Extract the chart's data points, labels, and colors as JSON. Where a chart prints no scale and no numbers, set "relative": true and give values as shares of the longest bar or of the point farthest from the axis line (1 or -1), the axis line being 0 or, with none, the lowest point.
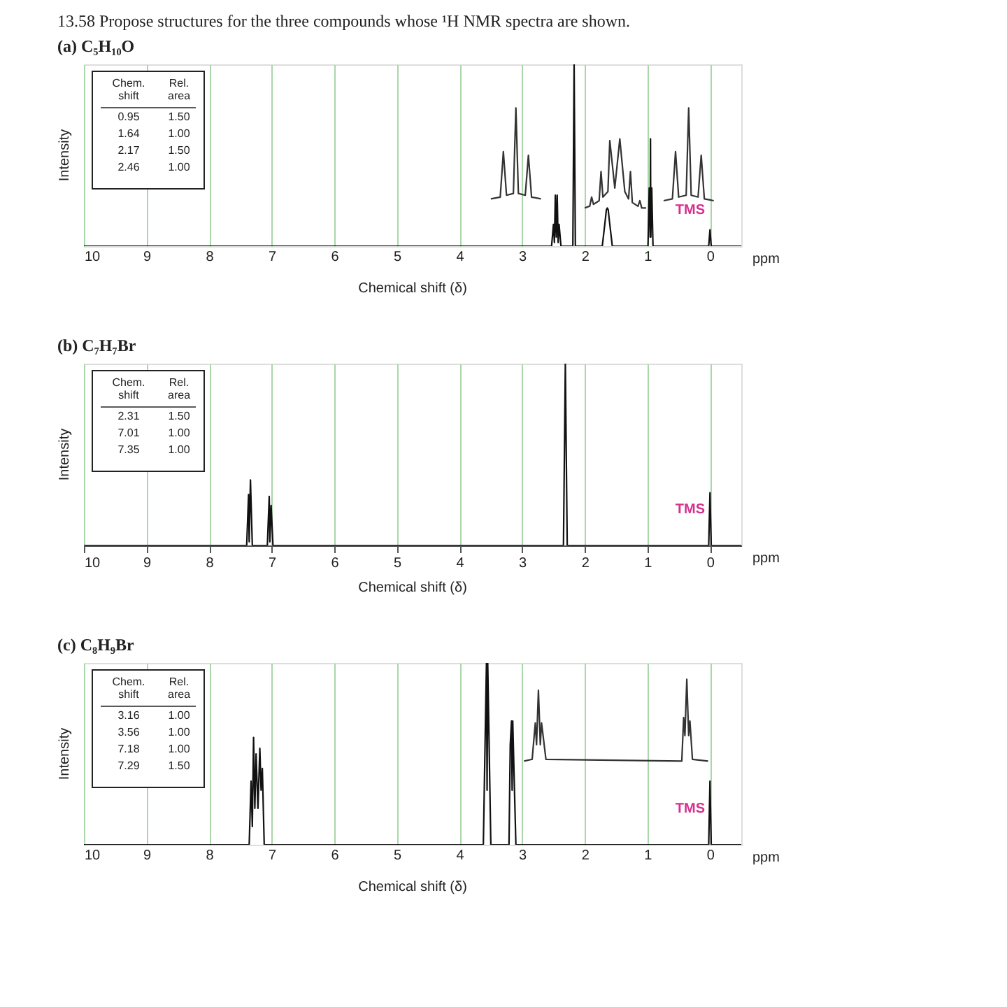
{
  "chart_data": [
    {
      "type": "line",
      "title": "13.58 Propose structures for the three compounds whose ¹H NMR spectra are shown.",
      "subtitle": "(a) C₅H₁₀O",
      "xlabel": "Chemical shift (δ)",
      "ylabel": "Intensity",
      "relative": true,
      "grid": "x",
      "xlim": [
        10,
        -0.5
      ],
      "xticks": [
        10,
        9,
        8,
        7,
        6,
        5,
        4,
        3,
        2,
        1,
        0
      ],
      "annotations": [
        "ppm",
        "TMS",
        "Chem. shift",
        "Rel. area",
        "0.95",
        "1.50",
        "1.64",
        "1.00",
        "2.17",
        "1.50",
        "2.46",
        "1.00"
      ],
      "series": [
        {
          "color": "#111111",
          "x": [
            10,
            2.53,
            2.5,
            2.485,
            2.47,
            2.455,
            2.44,
            2.425,
            2.41,
            2.38,
            2.19,
            2.17,
            2.15,
            1.72,
            1.7,
            1.67,
            1.655,
            1.64,
            1.625,
            1.61,
            1.58,
            1.56,
            0.99,
            0.97,
            0.955,
            0.95,
            0.945,
            0.93,
            0.91,
            0.02,
            0,
            -0.02,
            -0.5
          ],
          "values": [
            0,
            0,
            0.12,
            0.02,
            0.28,
            0.05,
            0.28,
            0.02,
            0.12,
            0,
            0,
            1.0,
            0,
            0,
            0.06,
            0.15,
            0.2,
            0.21,
            0.2,
            0.15,
            0.06,
            0,
            0,
            0.32,
            0.05,
            0.59,
            0.05,
            0.32,
            0,
            0,
            0.09,
            0,
            0
          ]
        },
        {
          "color": "#333333",
          "x": [
            3.5,
            3.35,
            3.3,
            3.25,
            3.14,
            3.1,
            3.06,
            2.95,
            2.9,
            2.85,
            2.7
          ],
          "values": [
            0.26,
            0.27,
            0.52,
            0.28,
            0.29,
            0.76,
            0.29,
            0.28,
            0.5,
            0.27,
            0.26
          ]
        },
        {
          "color": "#333333",
          "x": [
            2.0,
            1.92,
            1.89,
            1.86,
            1.77,
            1.74,
            1.71,
            1.63,
            1.6,
            1.52,
            1.44,
            1.36,
            1.3,
            1.27,
            1.24,
            1.15,
            1.12,
            1.09,
            1.02
          ],
          "values": [
            0.21,
            0.22,
            0.27,
            0.23,
            0.25,
            0.41,
            0.27,
            0.3,
            0.58,
            0.32,
            0.59,
            0.3,
            0.26,
            0.41,
            0.24,
            0.22,
            0.25,
            0.21,
            0.21
          ]
        },
        {
          "color": "#333333",
          "x": [
            0.74,
            0.6,
            0.55,
            0.5,
            0.38,
            0.34,
            0.3,
            0.19,
            0.14,
            0.09,
            -0.06
          ],
          "values": [
            0.25,
            0.26,
            0.52,
            0.27,
            0.28,
            0.76,
            0.28,
            0.27,
            0.5,
            0.26,
            0.25
          ]
        }
      ]
    },
    {
      "type": "line",
      "subtitle": "(b) C₇H₇Br",
      "xlabel": "Chemical shift (δ)",
      "ylabel": "Intensity",
      "relative": true,
      "grid": "x",
      "xlim": [
        10,
        -0.5
      ],
      "xticks": [
        10,
        9,
        8,
        7,
        6,
        5,
        4,
        3,
        2,
        1,
        0
      ],
      "annotations": [
        "ppm",
        "TMS",
        "Chem. shift",
        "Rel. area",
        "2.31",
        "1.50",
        "7.01",
        "1.00",
        "7.35",
        "1.00"
      ],
      "series": [
        {
          "color": "#111111",
          "x": [
            10,
            7.4,
            7.37,
            7.36,
            7.34,
            7.31,
            7.07,
            7.04,
            7.03,
            7.01,
            6.98,
            2.34,
            2.31,
            2.28,
            0.02,
            0,
            -0.02,
            -0.5
          ],
          "values": [
            0,
            0,
            0.28,
            0.02,
            0.36,
            0,
            0,
            0.27,
            0.02,
            0.22,
            0,
            0,
            1.0,
            0,
            0,
            0.29,
            0,
            0
          ]
        }
      ]
    },
    {
      "type": "line",
      "subtitle": "(c) C₈H₉Br",
      "xlabel": "Chemical shift (δ)",
      "ylabel": "Intensity",
      "relative": true,
      "grid": "x",
      "xlim": [
        10,
        -0.5
      ],
      "xticks": [
        10,
        9,
        8,
        7,
        6,
        5,
        4,
        3,
        2,
        1,
        0
      ],
      "annotations": [
        "ppm",
        "TMS",
        "Chem. shift",
        "Rel. area",
        "3.16",
        "1.00",
        "3.56",
        "1.00",
        "7.18",
        "1.00",
        "7.29",
        "1.50"
      ],
      "series": [
        {
          "color": "#111111",
          "x": [
            10,
            7.36,
            7.33,
            7.31,
            7.29,
            7.27,
            7.25,
            7.22,
            7.19,
            7.17,
            7.15,
            7.12,
            3.62,
            3.59,
            3.57,
            3.56,
            3.55,
            3.53,
            3.5,
            3.21,
            3.19,
            3.17,
            3.16,
            3.15,
            3.13,
            3.1,
            0.02,
            0,
            -0.02,
            -0.5
          ],
          "values": [
            0,
            0,
            0.35,
            0.1,
            0.59,
            0.2,
            0.5,
            0.2,
            0.53,
            0.3,
            0.42,
            0,
            0,
            0.6,
            1.0,
            0.3,
            1.0,
            0.6,
            0,
            0,
            0.55,
            0.68,
            0.3,
            0.68,
            0.4,
            0,
            0,
            0.35,
            0,
            0
          ]
        },
        {
          "color": "#333333",
          "x": [
            2.97,
            2.84,
            2.79,
            2.77,
            2.74,
            2.71,
            2.69,
            2.62,
            0.45,
            0.42,
            0.4,
            0.37,
            0.34,
            0.32,
            0.28,
            0.03
          ],
          "values": [
            0.46,
            0.47,
            0.67,
            0.55,
            0.85,
            0.55,
            0.67,
            0.47,
            0.46,
            0.7,
            0.6,
            0.91,
            0.6,
            0.68,
            0.47,
            0.46
          ]
        }
      ]
    }
  ]
}
